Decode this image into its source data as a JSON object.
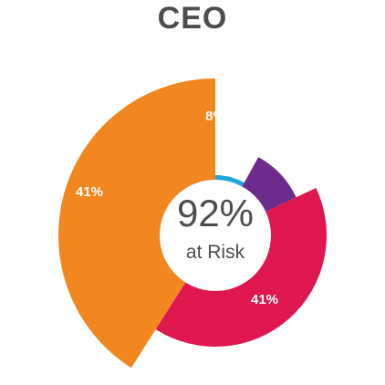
{
  "chart_data": {
    "type": "pie",
    "title": "CEO",
    "center_value": "92%",
    "center_caption": "at Risk",
    "slices": [
      {
        "label": "8%",
        "value": 8,
        "color": "#1fa9d8"
      },
      {
        "label": "10%",
        "value": 10,
        "color": "#6d2b8c"
      },
      {
        "label": "41%",
        "value": 41,
        "color": "#e0174f"
      },
      {
        "label": "41%",
        "value": 41,
        "color": "#f2861f"
      }
    ]
  }
}
